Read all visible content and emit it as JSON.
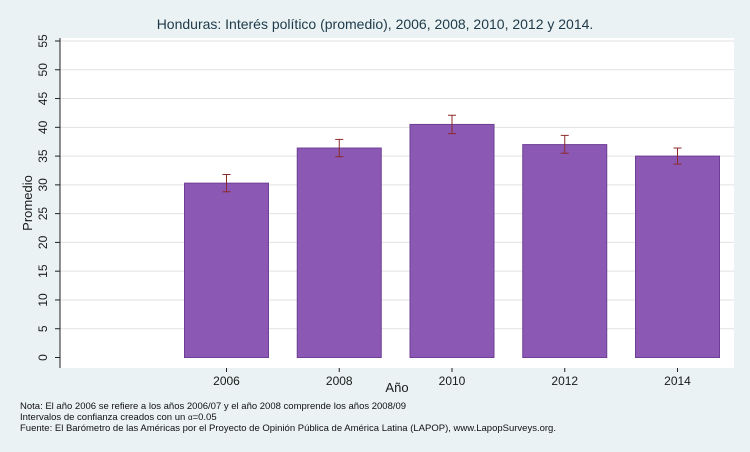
{
  "chart_data": {
    "type": "bar",
    "title": "Honduras: Interés político (promedio), 2006, 2008, 2010, 2012 y 2014.",
    "xlabel": "Año",
    "ylabel": "Promedio",
    "categories": [
      "2006",
      "2008",
      "2010",
      "2012",
      "2014"
    ],
    "series": [
      {
        "values": [
          30.3,
          36.4,
          40.5,
          37.0,
          35.0
        ],
        "ci_low": [
          28.8,
          34.9,
          38.9,
          35.5,
          33.6
        ],
        "ci_high": [
          31.8,
          37.9,
          42.1,
          38.6,
          36.4
        ]
      }
    ],
    "ylim": [
      0,
      55
    ],
    "yticks": [
      "0",
      "5",
      "10",
      "15",
      "20",
      "25",
      "30",
      "35",
      "40",
      "45",
      "50",
      "55"
    ],
    "grid": true,
    "legend": "none",
    "colors": {
      "bar": "#8b58b3",
      "bar_edge": "#6e3f96",
      "error": "#8c2a2a",
      "plot_bg": "#ffffff",
      "grid": "#e2e2e2"
    }
  },
  "notes": {
    "line1": "Nota: El año 2006 se refiere a los años 2006/07 y el año 2008 comprende los años 2008/09",
    "line2_prefix": "Intervalos de confianza creados con un ",
    "alpha_symbol": "α",
    "line2_suffix": "=0.05",
    "line3": "Fuente: El Barómetro de las Américas por el Proyecto de Opinión Pública de América Latina (LAPOP), www.LapopSurveys.org."
  }
}
